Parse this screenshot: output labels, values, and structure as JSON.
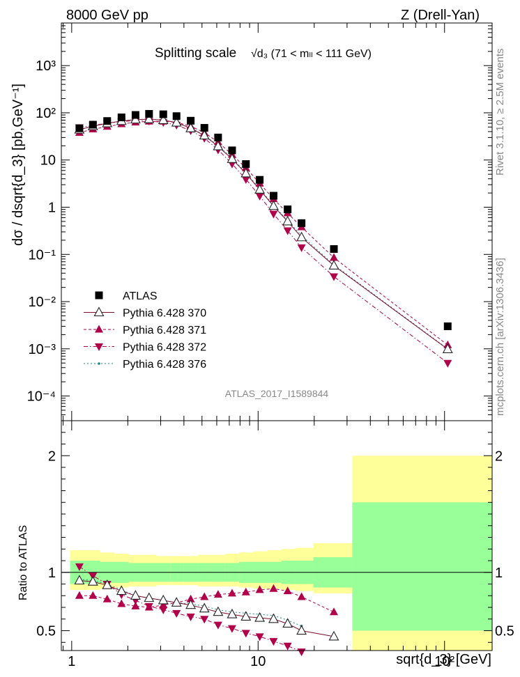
{
  "header": {
    "left": "8000 GeV pp",
    "right": "Z (Drell-Yan)"
  },
  "side_labels": {
    "rivet": "Rivet 3.1.10, ≥ 2.5M events",
    "mcplots": "mcplots.cern.ch [arXiv:1306.3436]"
  },
  "chart_data": [
    {
      "type": "scatter",
      "title": "Splitting scale",
      "title_math": "√d₃ (71 < mₗₗ < 111 GeV)",
      "ylabel": "dσ / dsqrt{d_3} [pb,GeV⁻¹]",
      "analysis_label": "ATLAS_2017_I1589844",
      "x_scale": "log",
      "y_scale": "log",
      "xlim": [
        0.88,
        180
      ],
      "ylim": [
        3e-05,
        8000
      ],
      "y_tick_labels": [
        "10⁻⁴",
        "10⁻³",
        "10⁻²",
        "10⁻¹",
        "1",
        "10",
        "10²",
        "10³"
      ],
      "legend_position": "lower-left",
      "x": [
        1.1,
        1.3,
        1.55,
        1.85,
        2.2,
        2.6,
        3.1,
        3.65,
        4.35,
        5.15,
        6.1,
        7.25,
        8.6,
        10.2,
        12.1,
        14.4,
        17.1,
        25.5,
        104
      ],
      "series": [
        {
          "name": "ATLAS",
          "color": "#000000",
          "marker": "square",
          "line": "none",
          "values": [
            47,
            56,
            67,
            80,
            90,
            95,
            93,
            85,
            68,
            48,
            30,
            16,
            8.2,
            3.8,
            1.75,
            0.9,
            0.46,
            0.13,
            0.003
          ]
        },
        {
          "name": "Pythia 6.428 370",
          "color": "#7b0a28",
          "marker": "open-triangle-up",
          "line": "solid",
          "values": [
            44,
            52,
            60,
            67,
            72,
            73,
            70,
            62,
            47,
            33,
            19.5,
            10.5,
            5.2,
            2.35,
            1.06,
            0.5,
            0.23,
            0.058,
            0.00098
          ]
        },
        {
          "name": "Pythia 6.428 371",
          "color": "#b0004a",
          "marker": "filled-triangle-up",
          "line": "dashed",
          "values": [
            38,
            45,
            51,
            58,
            63,
            66,
            66,
            63,
            52,
            38,
            24,
            13,
            6.8,
            3.2,
            1.5,
            0.75,
            0.38,
            0.085,
            0.0012
          ]
        },
        {
          "name": "Pythia 6.428 372",
          "color": "#b0004a",
          "marker": "filled-triangle-down",
          "line": "dashdot",
          "values": [
            49,
            54,
            60,
            65,
            68,
            67,
            63,
            55,
            42,
            29,
            16.5,
            8.3,
            3.9,
            1.73,
            0.72,
            0.32,
            0.14,
            0.034,
            0.0005
          ]
        },
        {
          "name": "Pythia 6.428 376",
          "color": "#1a8a80",
          "marker": "small-dot",
          "line": "dotted",
          "values": [
            44,
            52,
            60,
            67,
            72,
            73,
            70,
            62,
            48,
            34,
            20,
            11,
            5.4,
            2.45,
            1.1,
            0.52,
            0.25,
            0.06,
            0.001
          ]
        }
      ]
    },
    {
      "type": "scatter",
      "ylabel": "Ratio to ATLAS",
      "xlabel": "sqrt{d_3} [GeV]",
      "x_scale": "log",
      "xlim": [
        0.88,
        180
      ],
      "ylim": [
        0.33,
        2.3
      ],
      "x_tick_labels": [
        "1",
        "10",
        "10²"
      ],
      "y_tick_labels": [
        "0.5",
        "1",
        "2"
      ],
      "x": [
        1.1,
        1.3,
        1.55,
        1.85,
        2.2,
        2.6,
        3.1,
        3.65,
        4.35,
        5.15,
        6.1,
        7.25,
        8.6,
        10.2,
        12.1,
        14.4,
        17.1,
        25.5
      ],
      "bins": [
        0.98,
        1.2,
        1.42,
        1.7,
        2.02,
        2.4,
        2.85,
        3.38,
        4.0,
        4.75,
        5.6,
        6.65,
        7.9,
        9.4,
        11.2,
        13.3,
        15.8,
        19.8,
        32,
        180
      ],
      "band_inner": [
        [
          0.9,
          1.1
        ],
        [
          0.9,
          1.1
        ],
        [
          0.91,
          1.09
        ],
        [
          0.91,
          1.09
        ],
        [
          0.92,
          1.08
        ],
        [
          0.92,
          1.08
        ],
        [
          0.92,
          1.08
        ],
        [
          0.92,
          1.08
        ],
        [
          0.92,
          1.08
        ],
        [
          0.92,
          1.08
        ],
        [
          0.92,
          1.08
        ],
        [
          0.92,
          1.08
        ],
        [
          0.91,
          1.09
        ],
        [
          0.91,
          1.09
        ],
        [
          0.91,
          1.09
        ],
        [
          0.9,
          1.1
        ],
        [
          0.9,
          1.1
        ],
        [
          0.87,
          1.13
        ],
        [
          0.5,
          1.6
        ]
      ],
      "band_outer": [
        [
          0.85,
          1.19
        ],
        [
          0.85,
          1.19
        ],
        [
          0.86,
          1.17
        ],
        [
          0.87,
          1.16
        ],
        [
          0.88,
          1.15
        ],
        [
          0.88,
          1.15
        ],
        [
          0.89,
          1.14
        ],
        [
          0.89,
          1.14
        ],
        [
          0.89,
          1.14
        ],
        [
          0.88,
          1.15
        ],
        [
          0.88,
          1.15
        ],
        [
          0.88,
          1.16
        ],
        [
          0.87,
          1.17
        ],
        [
          0.86,
          1.18
        ],
        [
          0.86,
          1.19
        ],
        [
          0.85,
          1.2
        ],
        [
          0.84,
          1.21
        ],
        [
          0.82,
          1.25
        ],
        [
          0.3,
          2.0
        ]
      ],
      "series": [
        {
          "name": "Pythia 6.428 370",
          "values": [
            0.93,
            0.92,
            0.89,
            0.84,
            0.8,
            0.78,
            0.76,
            0.74,
            0.72,
            0.69,
            0.66,
            0.64,
            0.62,
            0.61,
            0.6,
            0.56,
            0.5,
            0.45
          ]
        },
        {
          "name": "Pythia 6.428 371",
          "values": [
            0.8,
            0.8,
            0.77,
            0.73,
            0.71,
            0.7,
            0.72,
            0.74,
            0.77,
            0.79,
            0.81,
            0.82,
            0.83,
            0.85,
            0.86,
            0.84,
            0.79,
            0.66
          ]
        },
        {
          "name": "Pythia 6.428 372",
          "values": [
            1.05,
            0.97,
            0.9,
            0.81,
            0.76,
            0.71,
            0.68,
            0.65,
            0.62,
            0.6,
            0.55,
            0.52,
            0.48,
            0.45,
            0.41,
            0.37,
            0.32,
            null
          ]
        },
        {
          "name": "Pythia 6.428 376",
          "values": [
            0.94,
            0.93,
            0.9,
            0.85,
            0.8,
            0.78,
            0.76,
            0.74,
            0.73,
            0.71,
            0.68,
            0.66,
            0.65,
            0.64,
            0.63,
            0.59,
            0.54,
            null
          ]
        }
      ]
    }
  ]
}
